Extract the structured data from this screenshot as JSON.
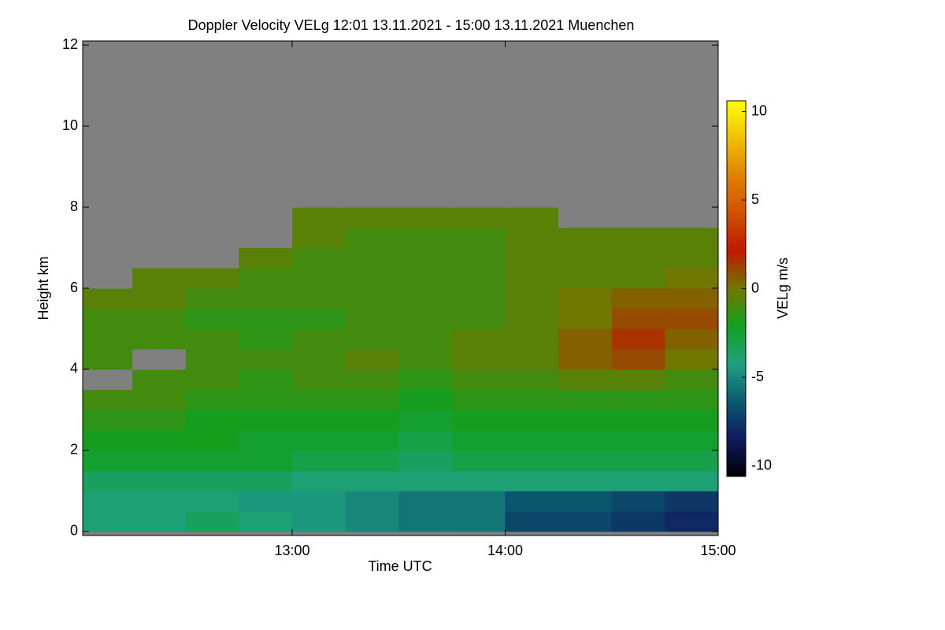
{
  "chart_data": {
    "type": "heatmap",
    "title": "Doppler Velocity VELg   12:01 13.11.2021 - 15:00 13.11.2021 Muenchen",
    "x_label": "Time UTC",
    "y_label": "Height km",
    "colorbar_label": "VELg m/s",
    "xlim": [
      12.0167,
      15.0
    ],
    "xticks": [
      {
        "value": 13,
        "label": "13:00"
      },
      {
        "value": 14,
        "label": "14:00"
      },
      {
        "value": 15,
        "label": "15:00"
      }
    ],
    "ylim": [
      -0.1,
      12.1
    ],
    "yticks": [
      0,
      2,
      4,
      6,
      8,
      10,
      12
    ],
    "clim": [
      -10.6,
      10.6
    ],
    "cticks": [
      -10,
      -5,
      0,
      5,
      10
    ],
    "colorscale": [
      "#000000",
      "#101a60",
      "#0a5a6e",
      "#20a080",
      "#10a020",
      "#707800",
      "#c01800",
      "#d05000",
      "#e08000",
      "#f0c000",
      "#ffff00"
    ],
    "missing_color": "#808080",
    "x": [
      12.125,
      12.375,
      12.625,
      12.875,
      13.125,
      13.375,
      13.625,
      13.875,
      14.125,
      14.375,
      14.625,
      14.875
    ],
    "y": [
      0.25,
      0.75,
      1.25,
      1.75,
      2.25,
      2.75,
      3.25,
      3.75,
      4.25,
      4.75,
      5.25,
      5.75,
      6.25,
      6.75,
      7.25,
      7.75,
      8.25,
      8.75,
      9.25,
      9.75,
      10.25,
      10.75,
      11.25,
      11.75
    ],
    "values": [
      [
        -4,
        -4,
        -3.5,
        -4,
        -4.5,
        -5,
        -5.5,
        -5.5,
        -7,
        -7,
        -7.5,
        -8
      ],
      [
        -4,
        -4,
        -4,
        -4.5,
        -4.5,
        -5,
        -5.5,
        -5.5,
        -6.5,
        -6.5,
        -7,
        -7.5
      ],
      [
        -3.5,
        -3.5,
        -3.5,
        -3.5,
        -4,
        -4,
        -4,
        -4,
        -4,
        -4,
        -4,
        -4
      ],
      [
        -2.5,
        -2.5,
        -2.5,
        -2.5,
        -3,
        -3,
        -3.5,
        -3,
        -3,
        -3,
        -3,
        -3
      ],
      [
        -2,
        -2,
        -2,
        -2.5,
        -2.5,
        -2.5,
        -3,
        -2.5,
        -2.5,
        -2.5,
        -2.5,
        -2.5
      ],
      [
        -1.5,
        -1.5,
        -2,
        -2,
        -2,
        -2,
        -2.5,
        -2,
        -2,
        -2,
        -2,
        -2
      ],
      [
        -1,
        -1,
        -1.5,
        -1.5,
        -1.5,
        -1.5,
        -2,
        -1.5,
        -1.5,
        -1.5,
        -1.5,
        -1.5
      ],
      [
        null,
        -1,
        -1,
        -1.5,
        -1,
        -1,
        -1.5,
        -1,
        -1,
        -0.5,
        -0.5,
        -1
      ],
      [
        -1,
        null,
        -1,
        -1,
        -1,
        -0.5,
        -1,
        -0.5,
        -0.5,
        0.5,
        1,
        0
      ],
      [
        -1,
        -1,
        -1,
        -1.5,
        -1,
        -1,
        -1,
        -0.5,
        -0.5,
        0.5,
        1.5,
        0.5
      ],
      [
        -1,
        -1,
        -1.5,
        -1.5,
        -1.5,
        -1,
        -1,
        -1,
        -0.5,
        0,
        1,
        1
      ],
      [
        -0.5,
        -0.5,
        -1,
        -1,
        -1,
        -1,
        -1,
        -1,
        -0.5,
        0,
        0.5,
        0.5
      ],
      [
        null,
        -0.5,
        -0.5,
        -1,
        -1,
        -1,
        -1,
        -1,
        -0.5,
        -0.5,
        -0.5,
        0
      ],
      [
        null,
        null,
        null,
        -0.5,
        -1,
        -1,
        -1,
        -1,
        -0.5,
        -0.5,
        -0.5,
        -0.5
      ],
      [
        null,
        null,
        null,
        null,
        -0.5,
        -1,
        -1,
        -1,
        -0.5,
        -0.5,
        -0.5,
        -0.5
      ],
      [
        null,
        null,
        null,
        null,
        -0.5,
        -0.5,
        -0.5,
        -0.5,
        -0.5,
        null,
        null,
        null
      ],
      [
        null,
        null,
        null,
        null,
        null,
        null,
        null,
        null,
        null,
        null,
        null,
        null
      ],
      [
        null,
        null,
        null,
        null,
        null,
        null,
        null,
        null,
        null,
        null,
        null,
        null
      ],
      [
        null,
        null,
        null,
        null,
        null,
        null,
        null,
        null,
        null,
        null,
        null,
        null
      ],
      [
        null,
        null,
        null,
        null,
        null,
        null,
        null,
        null,
        null,
        null,
        null,
        null
      ],
      [
        null,
        null,
        null,
        null,
        null,
        null,
        null,
        null,
        null,
        null,
        null,
        null
      ],
      [
        null,
        null,
        null,
        null,
        null,
        null,
        null,
        null,
        null,
        null,
        null,
        null
      ],
      [
        null,
        null,
        null,
        null,
        null,
        null,
        null,
        null,
        null,
        null,
        null,
        null
      ],
      [
        null,
        null,
        null,
        null,
        null,
        null,
        null,
        null,
        null,
        null,
        null,
        null
      ]
    ]
  }
}
